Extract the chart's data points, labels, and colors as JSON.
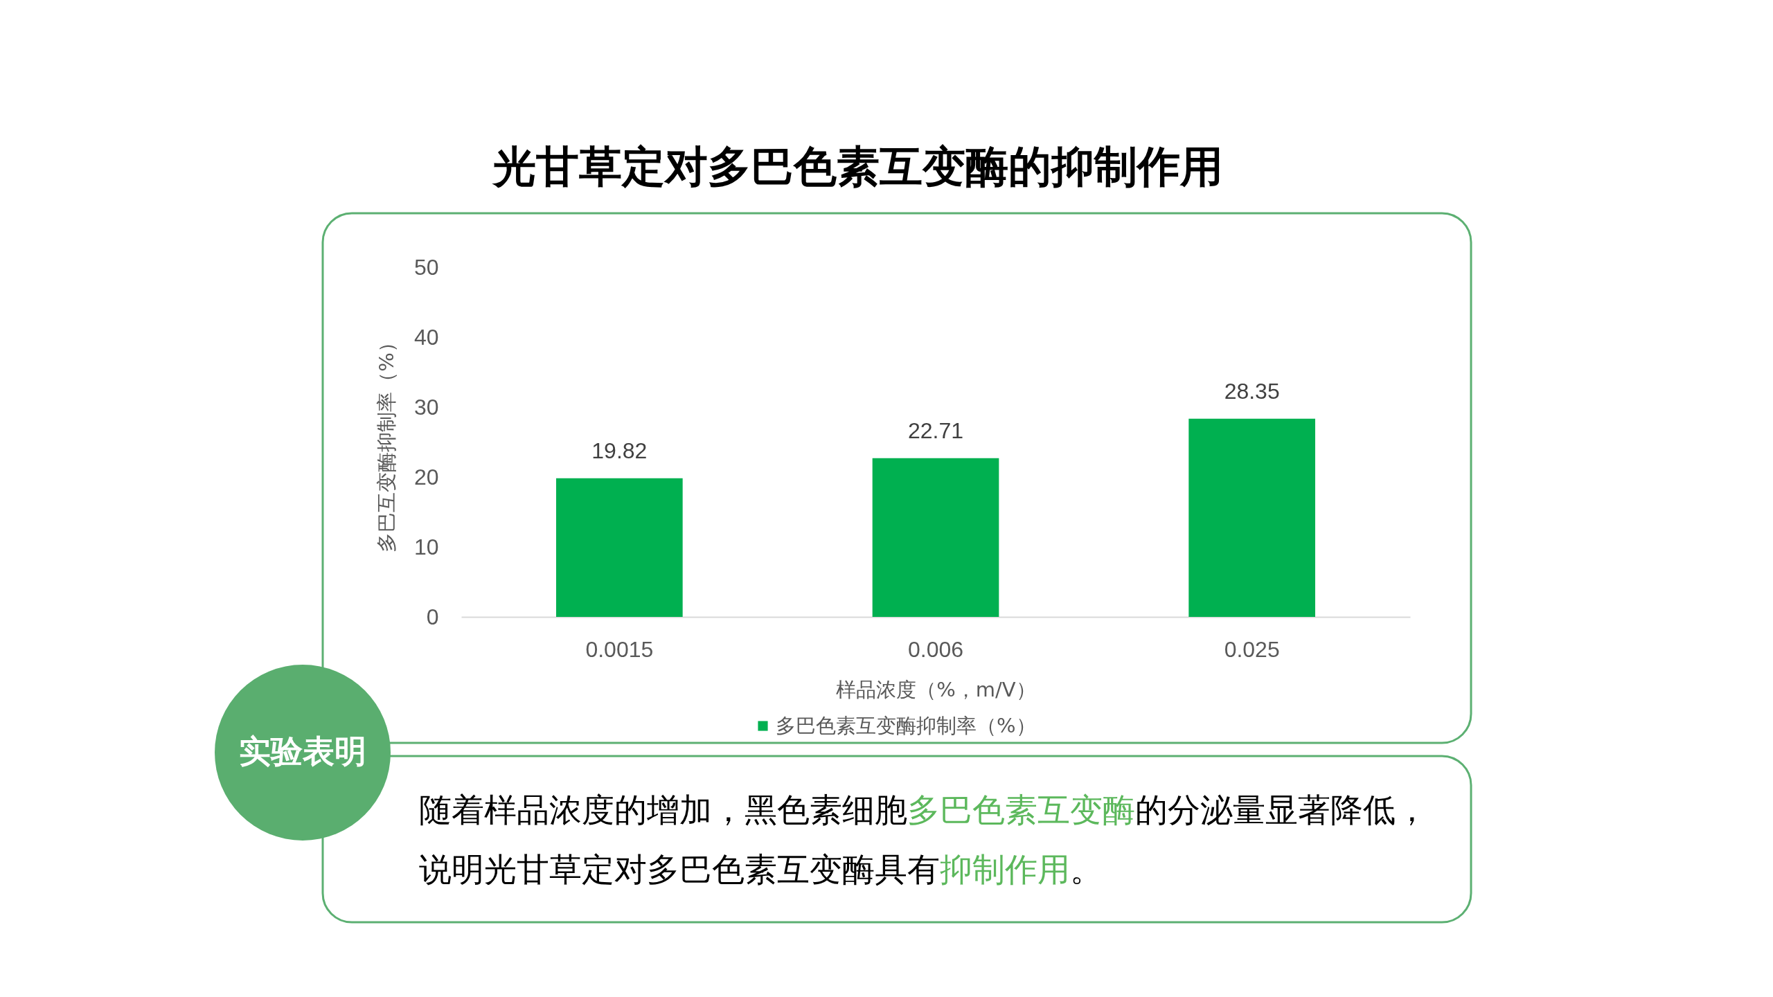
{
  "chart_data": {
    "type": "bar",
    "title": "光甘草定对多巴色素互变酶的抑制作用",
    "xlabel": "样品浓度（%，m/V）",
    "ylabel": "多巴互变酶抑制率（%）",
    "categories": [
      "0.0015",
      "0.006",
      "0.025"
    ],
    "series": [
      {
        "name": "多巴色素互变酶抑制率（%）",
        "color": "#00b050",
        "values": [
          19.82,
          22.71,
          28.35
        ]
      }
    ],
    "ylim": [
      0,
      50
    ],
    "yticks": [
      0,
      10,
      20,
      30,
      40,
      50
    ],
    "data_labels": true,
    "legend": "bottom",
    "annotations": [
      "实验表明",
      "随着样品浓度的增加，黑色素细胞",
      "多巴色素互变酶",
      "的分泌量显著降低，",
      "说明光甘草定对多巴色素互变酶具有",
      "抑制作用",
      "。"
    ]
  }
}
